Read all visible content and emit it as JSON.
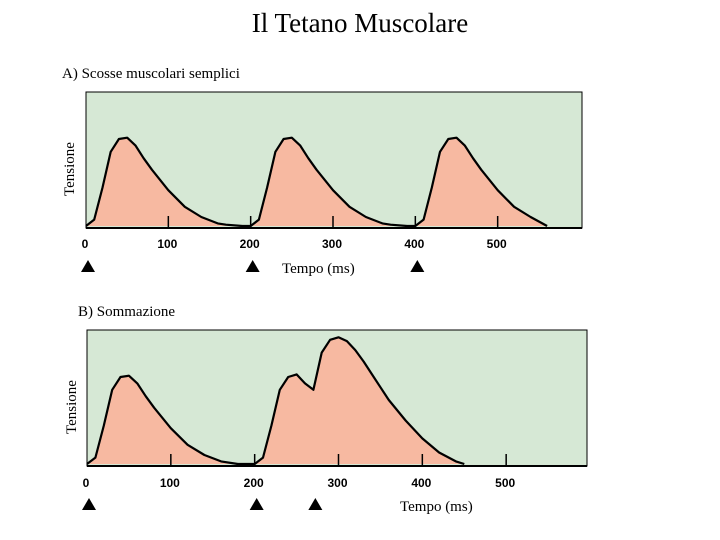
{
  "title": "Il Tetano Muscolare",
  "colors": {
    "panel_bg": "#d6e8d5",
    "curve_fill": "#f7b9a1",
    "curve_stroke": "#000000"
  },
  "chart_data": [
    {
      "type": "area",
      "title": "A) Scosse muscolari semplici",
      "xlabel": "Tempo (ms)",
      "ylabel": "Tensione",
      "xlim": [
        0,
        600
      ],
      "ylim": [
        0,
        1
      ],
      "xticks": [
        0,
        100,
        200,
        300,
        400,
        500
      ],
      "xtick_labels": [
        "0",
        "100",
        "200",
        "300",
        "400",
        "500"
      ],
      "stimuli_ms": [
        0,
        200,
        400
      ],
      "series": [
        {
          "name": "Tensione",
          "x": [
            0,
            10,
            20,
            30,
            40,
            50,
            60,
            70,
            80,
            100,
            120,
            140,
            160,
            170,
            190,
            200,
            210,
            220,
            230,
            240,
            250,
            260,
            270,
            280,
            300,
            320,
            340,
            360,
            370,
            390,
            400,
            410,
            420,
            430,
            440,
            450,
            460,
            470,
            480,
            500,
            520,
            540,
            560
          ],
          "y": [
            0.0,
            0.05,
            0.3,
            0.58,
            0.68,
            0.69,
            0.63,
            0.53,
            0.44,
            0.28,
            0.15,
            0.07,
            0.02,
            0.01,
            0.0,
            0.0,
            0.05,
            0.3,
            0.58,
            0.68,
            0.69,
            0.63,
            0.53,
            0.44,
            0.28,
            0.15,
            0.07,
            0.02,
            0.01,
            0.0,
            0.0,
            0.05,
            0.3,
            0.58,
            0.68,
            0.69,
            0.63,
            0.53,
            0.44,
            0.28,
            0.15,
            0.07,
            0.0
          ]
        }
      ]
    },
    {
      "type": "area",
      "title": "B) Sommazione",
      "xlabel": "Tempo (ms)",
      "ylabel": "Tensione",
      "xlim": [
        0,
        600
      ],
      "ylim": [
        0,
        1
      ],
      "xticks": [
        0,
        100,
        200,
        300,
        400,
        500
      ],
      "xtick_labels": [
        "0",
        "100",
        "200",
        "300",
        "400",
        "500"
      ],
      "stimuli_ms": [
        0,
        200,
        270
      ],
      "series": [
        {
          "name": "Tensione",
          "x": [
            0,
            10,
            20,
            30,
            40,
            50,
            60,
            70,
            80,
            100,
            120,
            140,
            160,
            180,
            200,
            210,
            220,
            230,
            240,
            250,
            260,
            270,
            280,
            290,
            300,
            310,
            320,
            330,
            340,
            350,
            360,
            380,
            400,
            420,
            440,
            450
          ],
          "y": [
            0.0,
            0.05,
            0.3,
            0.58,
            0.68,
            0.69,
            0.63,
            0.53,
            0.44,
            0.28,
            0.15,
            0.07,
            0.02,
            0.0,
            0.0,
            0.05,
            0.3,
            0.58,
            0.68,
            0.7,
            0.63,
            0.58,
            0.87,
            0.97,
            0.99,
            0.96,
            0.89,
            0.8,
            0.7,
            0.6,
            0.5,
            0.34,
            0.2,
            0.09,
            0.02,
            0.0
          ]
        }
      ]
    }
  ]
}
